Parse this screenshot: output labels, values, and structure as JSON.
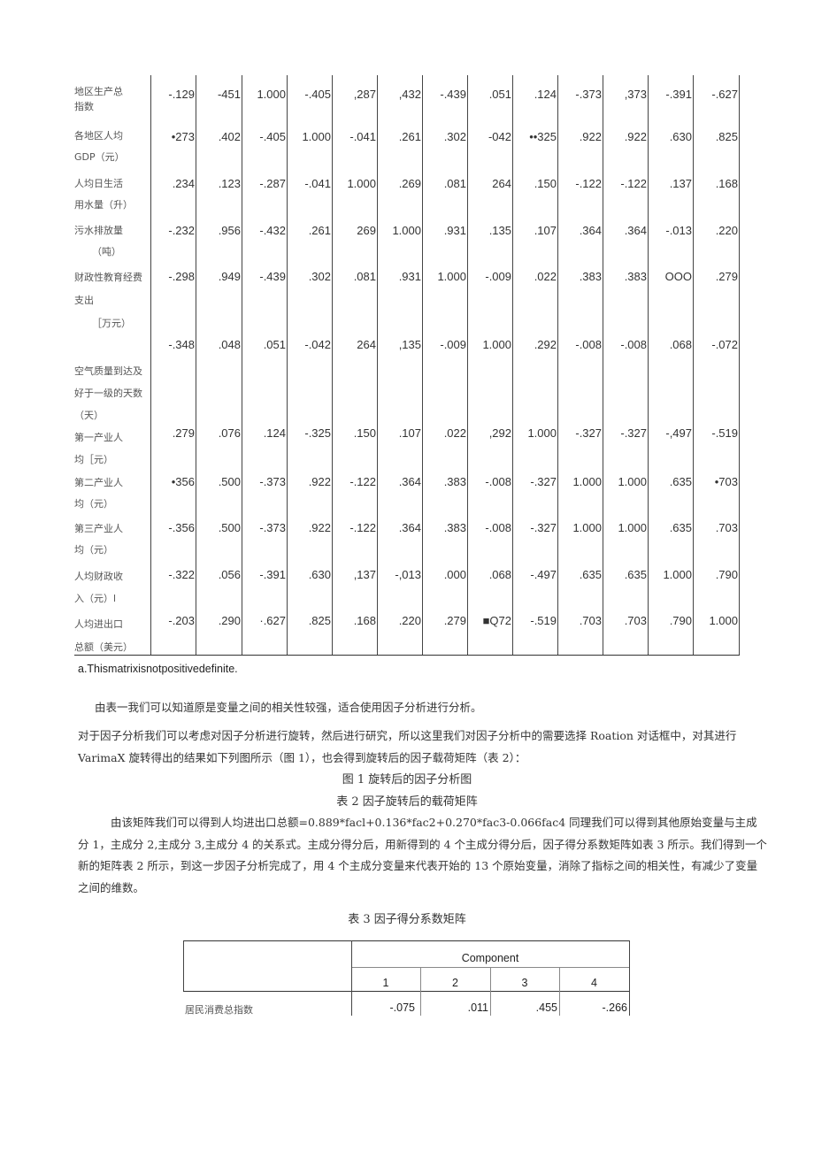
{
  "table1": {
    "rows": [
      {
        "label": [
          "地区生产总",
          "指数"
        ],
        "values": [
          "-.129",
          "-451",
          "1.000",
          "-.405",
          ",287",
          ",432",
          "-.439",
          ".051",
          ".124",
          "-.373",
          ",373",
          "-.391",
          "-.627"
        ]
      },
      {
        "label": [
          "各地区人均",
          "GDP（元）"
        ],
        "values": [
          "•273",
          ".402",
          "-.405",
          "1.000",
          "-.041",
          ".261",
          ".302",
          "-042",
          "••325",
          ".922",
          ".922",
          ".630",
          ".825"
        ]
      },
      {
        "label": [
          "人均日生活",
          "用水量（升）"
        ],
        "values": [
          ".234",
          ".123",
          "-.287",
          "-.041",
          "1.000",
          ".269",
          ".081",
          "264",
          ".150",
          "-.122",
          "-.122",
          ".137",
          ".168"
        ]
      },
      {
        "label": [
          "污水排放量",
          "（吨）"
        ],
        "values": [
          "-.232",
          ".956",
          "-.432",
          ".261",
          "269",
          "1.000",
          ".931",
          ".135",
          ".107",
          ".364",
          ".364",
          "-.013",
          ".220"
        ]
      },
      {
        "label": [
          "财政性教育经费",
          "支出",
          "［万元）"
        ],
        "values": [
          "-.298",
          ".949",
          "-.439",
          ".302",
          ".081",
          ".931",
          "1.000",
          "-.009",
          ".022",
          ".383",
          ".383",
          "OOO",
          ".279"
        ]
      },
      {
        "label": [
          "空气质量到达及",
          "好于一级的天数",
          "（天）"
        ],
        "values": [
          "-.348",
          ".048",
          ".051",
          "-.042",
          "264",
          ",135",
          "-.009",
          "1.000",
          ".292",
          "-.008",
          "-.008",
          ".068",
          "-.072"
        ]
      },
      {
        "label": [
          "第一产业人",
          "均［元）"
        ],
        "values": [
          ".279",
          ".076",
          ".124",
          "-.325",
          ".150",
          ".107",
          ".022",
          ",292",
          "1.000",
          "-.327",
          "-.327",
          "-,497",
          "-.519"
        ]
      },
      {
        "label": [
          "第二产业人",
          "均（元）"
        ],
        "values": [
          "•356",
          ".500",
          "-.373",
          ".922",
          "-.122",
          ".364",
          ".383",
          "-.008",
          "-.327",
          "1.000",
          "1.000",
          ".635",
          "•703"
        ]
      },
      {
        "label": [
          "第三产业人",
          "均（元）"
        ],
        "values": [
          "-.356",
          ".500",
          "-.373",
          ".922",
          "-.122",
          ".364",
          ".383",
          "-.008",
          "-.327",
          "1.000",
          "1.000",
          ".635",
          ".703"
        ]
      },
      {
        "label": [
          "人均财政收",
          "入（元）l"
        ],
        "values": [
          "-.322",
          ".056",
          "-.391",
          ".630",
          ",137",
          "-,013",
          ".000",
          ".068",
          "-.497",
          ".635",
          ".635",
          "1.000",
          ".790"
        ]
      },
      {
        "label": [
          "人均进出口",
          "总额（美元）"
        ],
        "values": [
          "-.203",
          ".290",
          "·.627",
          ".825",
          ".168",
          ".220",
          ".279",
          "■Q72",
          "-.519",
          ".703",
          ".703",
          ".790",
          "1.000"
        ]
      }
    ],
    "footnote": "a.Thismatrixisnotpositivedefinite."
  },
  "text": {
    "p1": "由表一我们可以知道原是变量之间的相关性较强，适合使用因子分析进行分析。",
    "p2": "对于因子分析我们可以考虑对因子分析进行旋转，然后进行研究，所以这里我们对因子分析中的需要选择 Roation 对话框中，对其进行 VarimaX 旋转得出的结果如下列图所示（图 1），也会得到旋转后的因子载荷矩阵（表 2）：",
    "caption_fig1": "图 1 旋转后的因子分析图",
    "caption_table2": "表 2 因子旋转后的载荷矩阵",
    "p3": "由该矩阵我们可以得到人均进出口总额=0.889*facl+0.136*fac2+0.270*fac3-0.066fac4 同理我们可以得到其他原始变量与主成分 1，主成分 2,主成分 3,主成分 4 的关系式。主成分得分后，用新得到的 4 个主成分得分后，因子得分系数矩阵如表 3 所示。我们得到一个新的矩阵表 2 所示，到这一步因子分析完成了，用 4 个主成分变量来代表开始的 13 个原始变量，消除了指标之间的相关性，有减少了变量之间的维数。",
    "caption_table3": "表 3 因子得分系数矩阵"
  },
  "table3": {
    "group_header": "Component",
    "columns": [
      "1",
      "2",
      "3",
      "4"
    ],
    "rows": [
      {
        "label": "居民消费总指数",
        "values": [
          "-.075",
          ".011",
          ".455",
          "-.266"
        ]
      }
    ]
  }
}
